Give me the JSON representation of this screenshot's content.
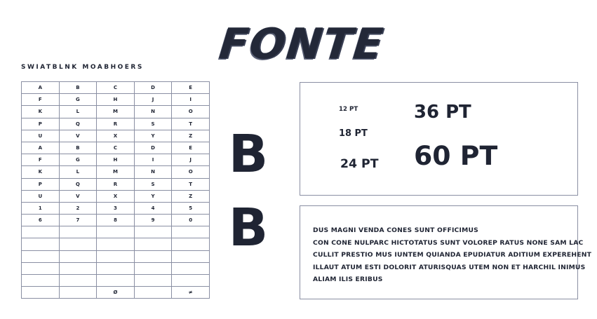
{
  "header": {
    "title": "FONTE",
    "subtitle": "SWIATBLNK MOABHOERS"
  },
  "table": {
    "rows": [
      [
        "A",
        "B",
        "C",
        "D",
        "E"
      ],
      [
        "F",
        "G",
        "H",
        "J",
        "I"
      ],
      [
        "K",
        "L",
        "M",
        "N",
        "O"
      ],
      [
        "P",
        "Q",
        "R",
        "S",
        "T"
      ],
      [
        "U",
        "V",
        "X",
        "Y",
        "Z"
      ],
      [
        "A",
        "B",
        "C",
        "D",
        "E"
      ],
      [
        "F",
        "G",
        "H",
        "I",
        "J"
      ],
      [
        "K",
        "L",
        "M",
        "N",
        "O"
      ],
      [
        "P",
        "Q",
        "R",
        "S",
        "T"
      ],
      [
        "U",
        "V",
        "X",
        "Y",
        "Z"
      ],
      [
        "1",
        "2",
        "3",
        "4",
        "5"
      ],
      [
        "6",
        "7",
        "8",
        "9",
        "0"
      ],
      [
        null,
        null,
        null,
        null,
        null
      ],
      [
        null,
        null,
        null,
        null,
        null
      ],
      [
        null,
        null,
        null,
        null,
        null
      ],
      [
        null,
        null,
        null,
        null,
        null
      ],
      [
        null,
        null,
        null,
        null,
        null
      ],
      [
        null,
        null,
        "Ø",
        null,
        "≠"
      ]
    ]
  },
  "glyphs": [
    "B",
    "B"
  ],
  "sizes": [
    {
      "label": "12 PT",
      "size": 12
    },
    {
      "label": "36 PT",
      "size": 36
    },
    {
      "label": "18 PT",
      "size": 18
    },
    {
      "label": "24 PT",
      "size": 24
    },
    {
      "label": "60 PT",
      "size": 60
    }
  ],
  "paragraph": [
    "DUS MAGNI VENDA CONES SUNT OFFICIMUS",
    "CON CONE NULPARC HICTOTATUS  SUNT VOLOREP RATUS  NONE SAM LAC",
    "CULLIT PRESTIO  MUS IUNTEM QUIANDA EPUDIATUR ADITIUM EXPEREHENT",
    "ILLAUT ATUM ESTI DOLORIT ATURISQUAS UTEM NON ET HARCHIL INIMUS",
    "ALIAM ILIS ERIBUS"
  ]
}
